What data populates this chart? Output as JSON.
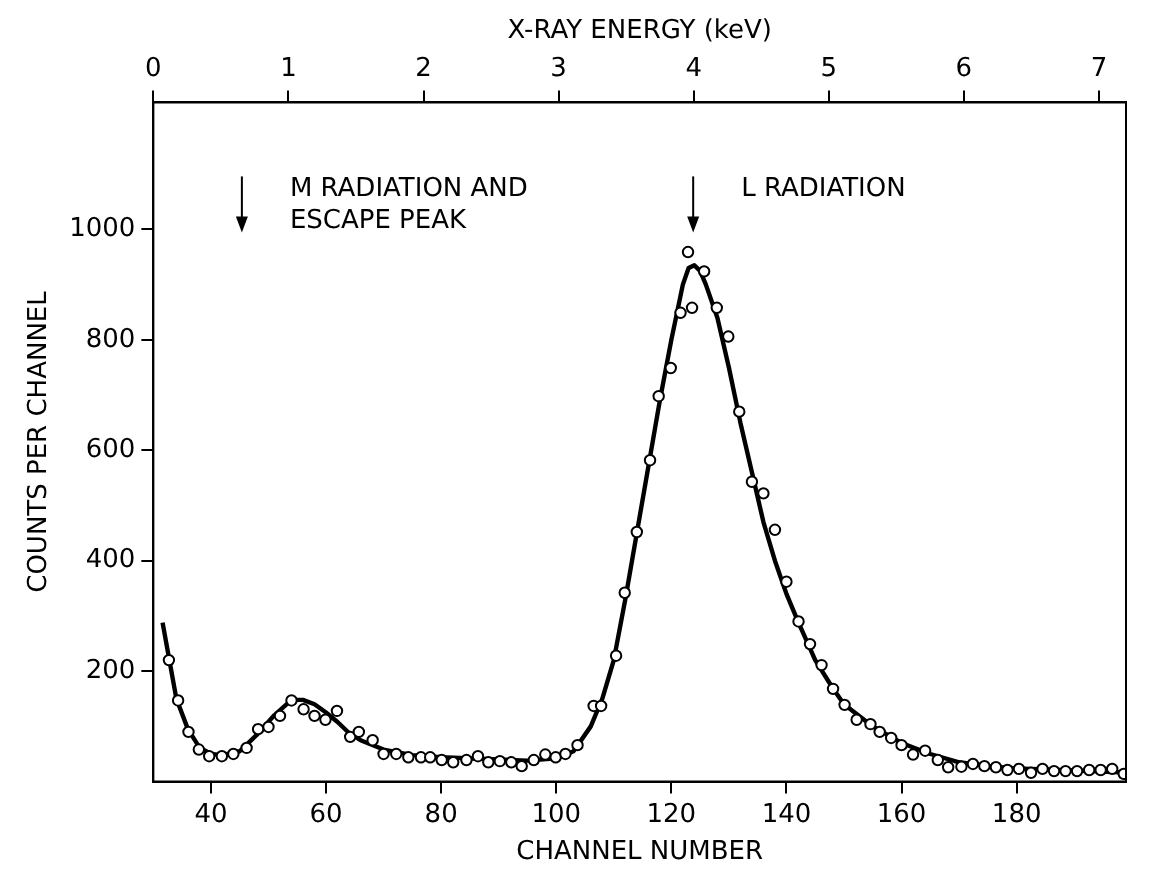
{
  "chart_data": {
    "type": "scatter",
    "xlabel": "CHANNEL NUMBER",
    "ylabel": "COUNTS PER CHANNEL",
    "x2label": "X-RAY ENERGY (keV)",
    "xlim": [
      30,
      199
    ],
    "xticks": [
      40,
      60,
      80,
      100,
      120,
      140,
      160,
      180
    ],
    "x2lim": [
      0,
      7.2
    ],
    "x2ticks": [
      0,
      1,
      2,
      3,
      4,
      5,
      6,
      7
    ],
    "ylim": [
      0,
      1230
    ],
    "yticks": [
      200,
      400,
      600,
      800,
      1000
    ],
    "grid": false,
    "legend": false,
    "annotations": [
      "M RADIATION AND ESCAPE PEAK",
      "L RADIATION"
    ],
    "series": [
      {
        "type": "scatter",
        "color": "#000000",
        "marker": "circle",
        "x": [
          32.7,
          34.3,
          36.1,
          37.9,
          39.7,
          41.9,
          43.9,
          46.2,
          48.2,
          50.0,
          52.0,
          54.0,
          56.1,
          58.0,
          59.9,
          61.9,
          64.2,
          65.7,
          68.1,
          70.0,
          72.2,
          74.3,
          76.5,
          78.1,
          80.1,
          82.1,
          84.4,
          86.4,
          88.2,
          90.2,
          92.2,
          94.0,
          96.1,
          98.1,
          99.9,
          101.6,
          103.7,
          106.5,
          107.8,
          110.4,
          111.9,
          114.0,
          116.3,
          117.8,
          119.9,
          121.6,
          122.9,
          123.6,
          125.7,
          127.9,
          129.9,
          131.8,
          134.0,
          136.0,
          138.0,
          140.0,
          142.1,
          144.1,
          146.1,
          148.1,
          150.1,
          152.2,
          154.6,
          156.2,
          158.2,
          160.0,
          162.0,
          164.1,
          166.3,
          168.1,
          170.4,
          172.4,
          174.4,
          176.4,
          178.4,
          180.4,
          182.5,
          184.5,
          186.5,
          188.5,
          190.5,
          192.6,
          194.6,
          196.6,
          198.6
        ],
        "values": [
          220,
          147,
          90,
          58,
          46,
          46,
          50,
          61,
          95,
          99,
          119,
          147,
          131,
          119,
          112,
          128,
          81,
          90,
          75,
          50,
          50,
          44,
          44,
          44,
          39,
          35,
          39,
          46,
          35,
          37,
          35,
          28,
          39,
          49,
          44,
          50,
          66,
          137,
          137,
          228,
          342,
          452,
          582,
          698,
          749,
          849,
          959,
          858,
          924,
          858,
          806,
          670,
          543,
          522,
          456,
          362,
          290,
          249,
          211,
          168,
          139,
          112,
          104,
          90,
          79,
          66,
          49,
          56,
          39,
          26,
          27,
          32,
          28,
          26,
          21,
          23,
          16,
          23,
          19,
          19,
          19,
          21,
          21,
          23,
          14
        ]
      },
      {
        "type": "line",
        "color": "#000000",
        "marker": "none",
        "line_style": "solid",
        "x": [
          31.6,
          34,
          36,
          38,
          40,
          42,
          45,
          48,
          51,
          54,
          56,
          58,
          60,
          62,
          64,
          66,
          70,
          75,
          80,
          90,
          95,
          100,
          103,
          106,
          108,
          110,
          112,
          114,
          116,
          118,
          120,
          122,
          123,
          124,
          125,
          126,
          128,
          130,
          132,
          134,
          136,
          138,
          140,
          142,
          145,
          148,
          150,
          155,
          160,
          165,
          170,
          175,
          180,
          190,
          198
        ],
        "values": [
          288,
          150,
          95,
          62,
          50,
          48,
          55,
          85,
          120,
          148,
          148,
          140,
          125,
          108,
          88,
          75,
          58,
          48,
          44,
          40,
          38,
          42,
          55,
          100,
          150,
          220,
          330,
          450,
          570,
          690,
          800,
          900,
          930,
          935,
          925,
          900,
          840,
          750,
          650,
          560,
          470,
          400,
          340,
          290,
          220,
          170,
          140,
          100,
          70,
          50,
          35,
          28,
          24,
          20,
          17
        ]
      }
    ]
  }
}
